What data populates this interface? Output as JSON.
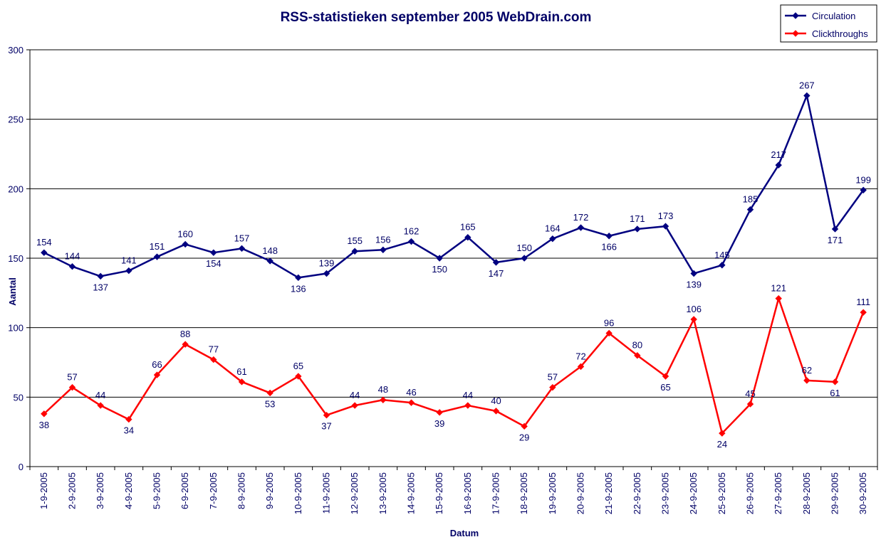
{
  "chart_data": {
    "type": "line",
    "title": "RSS-statistieken september 2005 WebDrain.com",
    "xlabel": "Datum",
    "ylabel": "Aantal",
    "ylim": [
      0,
      300
    ],
    "yticks": [
      "0",
      "50",
      "100",
      "150",
      "200",
      "250",
      "300"
    ],
    "grid": true,
    "legend_position": "top-right",
    "categories": [
      "1-9-2005",
      "2-9-2005",
      "3-9-2005",
      "4-9-2005",
      "5-9-2005",
      "6-9-2005",
      "7-9-2005",
      "8-9-2005",
      "9-9-2005",
      "10-9-2005",
      "11-9-2005",
      "12-9-2005",
      "13-9-2005",
      "14-9-2005",
      "15-9-2005",
      "16-9-2005",
      "17-9-2005",
      "18-9-2005",
      "19-9-2005",
      "20-9-2005",
      "21-9-2005",
      "22-9-2005",
      "23-9-2005",
      "24-9-2005",
      "25-9-2005",
      "26-9-2005",
      "27-9-2005",
      "28-9-2005",
      "29-9-2005",
      "30-9-2005"
    ],
    "series": [
      {
        "name": "Circulation",
        "color": "#000080",
        "values": [
          154,
          144,
          137,
          141,
          151,
          160,
          154,
          157,
          148,
          136,
          139,
          155,
          156,
          162,
          150,
          165,
          147,
          150,
          164,
          172,
          166,
          171,
          173,
          139,
          145,
          185,
          217,
          267,
          171,
          199
        ]
      },
      {
        "name": "Clickthroughs",
        "color": "#ff0000",
        "values": [
          38,
          57,
          44,
          34,
          66,
          88,
          77,
          61,
          53,
          65,
          37,
          44,
          48,
          46,
          39,
          44,
          40,
          29,
          57,
          72,
          96,
          80,
          65,
          106,
          24,
          45,
          121,
          62,
          61,
          111
        ]
      }
    ]
  }
}
